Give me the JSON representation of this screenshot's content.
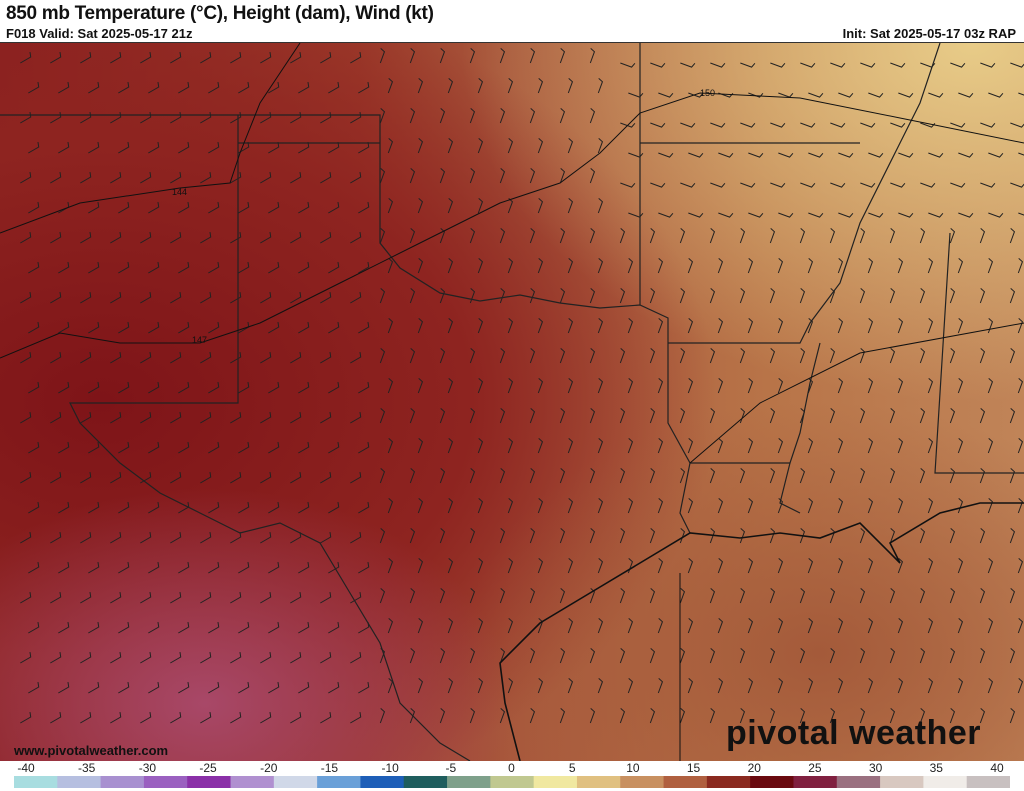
{
  "header": {
    "title": "850 mb Temperature (°C), Height (dam), Wind (kt)",
    "valid": "F018 Valid: Sat 2025-05-17 21z",
    "init": "Init: Sat 2025-05-17 03z RAP"
  },
  "map": {
    "contour_labels": [
      "144",
      "147",
      "150"
    ],
    "watermark_url": "www.pivotalweather.com",
    "logo_text": "pivotal weather"
  },
  "colorbar": {
    "labels": [
      "-40",
      "-35",
      "-30",
      "-25",
      "-20",
      "-15",
      "-10",
      "-5",
      "0",
      "5",
      "10",
      "15",
      "20",
      "25",
      "30",
      "35",
      "40"
    ],
    "range": [
      -40,
      40
    ],
    "colors": [
      "#a8dde0",
      "#b6bfe0",
      "#a890d0",
      "#9a60c0",
      "#8a30a8",
      "#b090d0",
      "#d0d8e8",
      "#6aa0d8",
      "#1e5fb8",
      "#1f5e5e",
      "#7ea08a",
      "#c0c890",
      "#f0e8a0",
      "#e0c080",
      "#c89060",
      "#b06040",
      "#8a2a20",
      "#6a0a10",
      "#802040",
      "#9a7080",
      "#d8c8c0",
      "#f0ece8",
      "#c8c0c0"
    ]
  }
}
